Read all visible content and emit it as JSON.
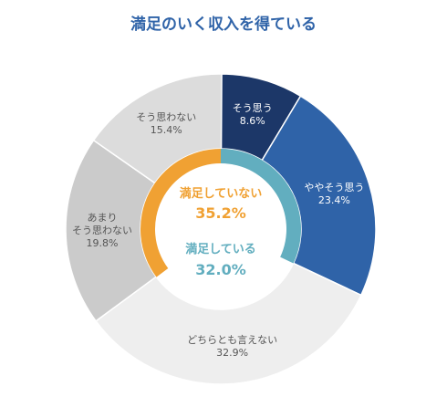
{
  "chart_data": {
    "type": "donut",
    "title": "満足のいく収入を得ている",
    "total": 100,
    "rings": [
      {
        "categories": [
          "そう思う",
          "ややそう思う",
          "どちらとも言えない",
          "あまり\nそう思わない",
          "そう思わない"
        ],
        "values": [
          8.6,
          23.4,
          32.9,
          19.8,
          15.4
        ],
        "value_labels": [
          "8.6%",
          "23.4%",
          "32.9%",
          "19.8%",
          "15.4%"
        ],
        "colors": [
          "#1c3768",
          "#2f63a8",
          "#eeeeee",
          "#cbcbcb",
          "#dcdcdc"
        ],
        "label_colors": [
          "#ffffff",
          "#ffffff",
          "#555555",
          "#555555",
          "#555555"
        ],
        "direction": "clockwise"
      },
      {
        "categories": [
          "満足している",
          "満足していない"
        ],
        "values": [
          32.0,
          35.2
        ],
        "value_labels": [
          "32.0%",
          "35.2%"
        ],
        "colors": [
          "#62aebf",
          "#f0a133"
        ],
        "directions": [
          "clockwise",
          "counterclockwise"
        ]
      }
    ]
  }
}
